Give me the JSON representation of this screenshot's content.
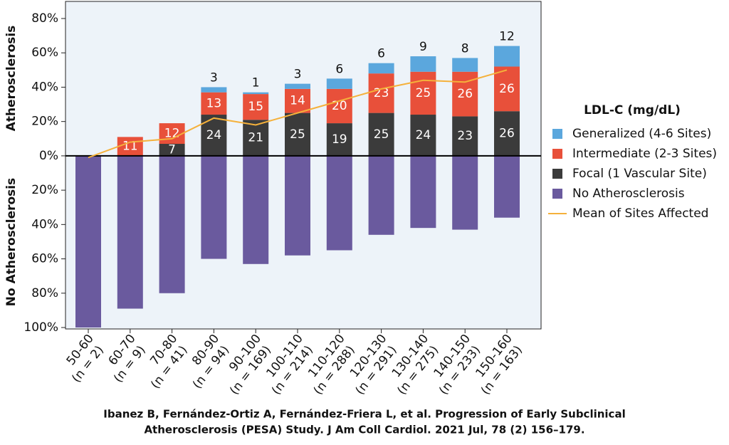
{
  "chart_data": {
    "type": "bar",
    "stacked": true,
    "y_label_top": "Atherosclerosis",
    "y_label_bottom": "No Atherosclerosis",
    "legend_title": "LDL-C (mg/dL)",
    "legend": "right",
    "categories": [
      "50-60",
      "60-70",
      "70-80",
      "80-90",
      "90-100",
      "100-110",
      "110-120",
      "120-130",
      "130-140",
      "140-150",
      "150-160"
    ],
    "category_counts": [
      "(n = 2)",
      "(n = 9)",
      "(n = 41)",
      "(n = 94)",
      "(n = 169)",
      "(n = 214)",
      "(n = 288)",
      "(n = 291)",
      "(n = 275)",
      "(n = 233)",
      "(n = 163)"
    ],
    "series": [
      {
        "name": "Generalized (4-6 Sites)",
        "color": "#5ba7dd",
        "values": [
          0,
          0,
          0,
          3,
          1,
          3,
          6,
          6,
          9,
          8,
          12
        ]
      },
      {
        "name": "Intermediate (2-3 Sites)",
        "color": "#e8503a",
        "values": [
          0,
          11,
          12,
          13,
          15,
          14,
          20,
          23,
          25,
          26,
          26
        ]
      },
      {
        "name": "Focal (1 Vascular Site)",
        "color": "#3b3b3b",
        "values": [
          0,
          0,
          7,
          24,
          21,
          25,
          19,
          25,
          24,
          23,
          26
        ]
      },
      {
        "name": "No Atherosclerosis",
        "color": "#6a5a9e",
        "values": [
          -100,
          -89,
          -80,
          -60,
          -63,
          -58,
          -55,
          -46,
          -42,
          -43,
          -36
        ]
      },
      {
        "name": "Mean of Sites Affected",
        "color": "#f5b13b",
        "type": "line",
        "values": [
          -1,
          8,
          10,
          22,
          18,
          25,
          32,
          39,
          44,
          43,
          50
        ]
      }
    ],
    "ylim": [
      -100,
      80
    ],
    "yticks": [
      {
        "value": 80,
        "label": "80%"
      },
      {
        "value": 60,
        "label": "60%"
      },
      {
        "value": 40,
        "label": "40%"
      },
      {
        "value": 20,
        "label": "20%"
      },
      {
        "value": 0,
        "label": "0%"
      },
      {
        "value": -20,
        "label": "20%"
      },
      {
        "value": -40,
        "label": "40%"
      },
      {
        "value": -60,
        "label": "60%"
      },
      {
        "value": -80,
        "label": "80%"
      },
      {
        "value": -100,
        "label": "100%"
      }
    ],
    "citation": [
      "Ibanez B, Fernández-Ortiz A, Fernández-Friera L, et al. Progression of Early Subclinical",
      "Atherosclerosis (PESA) Study. J Am Coll Cardiol. 2021 Jul, 78 (2) 156–179."
    ]
  }
}
